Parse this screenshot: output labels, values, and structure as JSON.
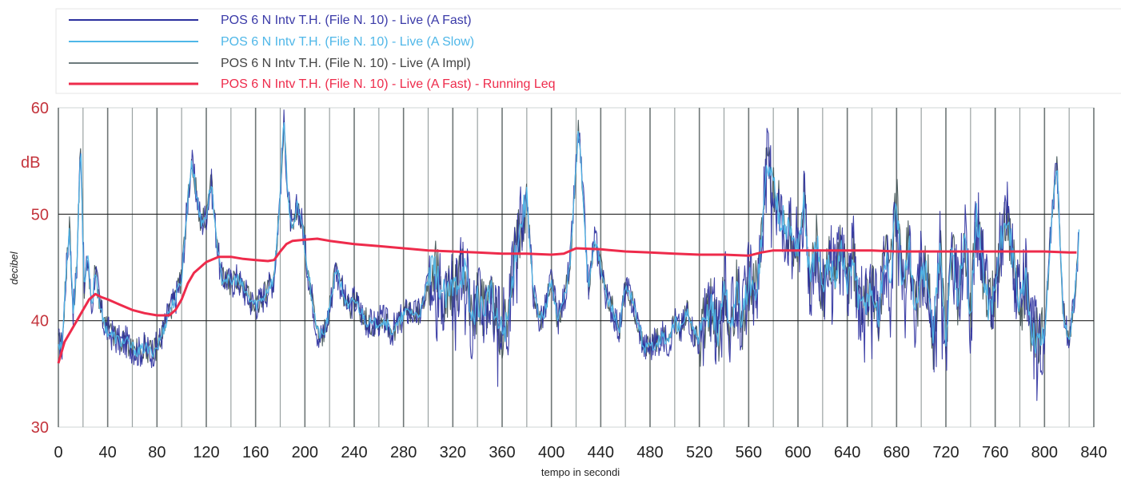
{
  "chart_data": {
    "type": "line",
    "title": "",
    "xlabel": "tempo in secondi",
    "ylabel": "decibel",
    "unit_label": "dB",
    "xlim": [
      0,
      840
    ],
    "ylim": [
      30,
      60
    ],
    "x_ticks": [
      "0",
      "40",
      "80",
      "120",
      "160",
      "200",
      "240",
      "280",
      "320",
      "360",
      "400",
      "440",
      "480",
      "520",
      "560",
      "600",
      "640",
      "680",
      "720",
      "760",
      "800",
      "840"
    ],
    "y_ticks": [
      "30",
      "40",
      "50",
      "60"
    ],
    "grid": "horizontal at 40 and 50 dB; vertical every 20 s",
    "legend_position": "top",
    "series": [
      {
        "name": "POS 6 N Intv T.H.  (File N. 10) - Live (A Fast)",
        "color": "#2b2f9e",
        "x": [
          0,
          3,
          6,
          9,
          12,
          15,
          18,
          21,
          24,
          27,
          30,
          33,
          36,
          40,
          45,
          50,
          55,
          60,
          65,
          70,
          75,
          80,
          85,
          90,
          95,
          100,
          104,
          108,
          112,
          116,
          120,
          124,
          128,
          132,
          136,
          140,
          145,
          150,
          155,
          160,
          165,
          170,
          175,
          180,
          183,
          186,
          190,
          194,
          198,
          202,
          206,
          210,
          215,
          220,
          225,
          230,
          235,
          240,
          245,
          250,
          255,
          260,
          265,
          270,
          275,
          280,
          285,
          290,
          295,
          300,
          305,
          310,
          315,
          320,
          325,
          330,
          335,
          340,
          345,
          350,
          355,
          360,
          365,
          370,
          375,
          380,
          385,
          390,
          395,
          400,
          405,
          410,
          415,
          418,
          422,
          426,
          430,
          435,
          440,
          445,
          450,
          455,
          460,
          465,
          470,
          475,
          480,
          485,
          490,
          495,
          500,
          505,
          510,
          515,
          520,
          525,
          530,
          535,
          540,
          545,
          550,
          555,
          560,
          565,
          570,
          575,
          580,
          585,
          590,
          595,
          600,
          605,
          610,
          615,
          620,
          625,
          630,
          635,
          640,
          645,
          650,
          655,
          660,
          665,
          670,
          675,
          680,
          685,
          690,
          695,
          700,
          705,
          710,
          715,
          720,
          725,
          730,
          735,
          740,
          745,
          750,
          755,
          760,
          765,
          770,
          775,
          780,
          785,
          790,
          795,
          800,
          805,
          810,
          815,
          820,
          825,
          828
        ],
        "y": [
          38,
          37.5,
          44,
          49,
          41,
          45,
          57,
          43,
          46,
          41,
          45,
          42,
          40,
          39,
          38.5,
          38,
          38,
          37.5,
          37,
          37.5,
          37,
          37.5,
          39,
          41,
          42,
          44,
          50,
          55,
          52,
          49,
          50,
          53,
          48,
          44,
          44,
          43.5,
          44,
          43,
          42,
          41.5,
          42,
          43,
          44,
          52,
          59,
          52,
          48,
          51,
          49,
          45,
          42,
          39,
          38.5,
          41,
          45,
          43,
          41,
          42,
          41,
          40,
          39.5,
          40,
          40,
          39,
          39.5,
          40.5,
          41,
          40.5,
          41,
          44,
          45,
          43,
          42,
          43,
          44,
          45,
          40,
          42,
          41,
          43,
          40,
          39,
          40,
          46,
          49,
          52,
          43,
          40,
          41,
          44,
          40,
          42,
          45,
          51,
          58,
          51,
          43,
          48,
          45,
          42,
          41,
          39,
          43,
          42,
          40,
          37.5,
          37.5,
          38,
          38.5,
          38,
          40,
          39,
          41,
          39,
          38,
          40,
          42,
          38,
          44,
          39,
          43,
          40,
          44,
          42,
          47,
          55,
          53,
          50,
          49,
          48,
          47,
          51,
          43,
          48,
          42,
          46,
          44,
          47,
          43,
          46,
          41,
          42,
          43,
          40,
          46,
          44,
          51,
          42,
          48,
          40,
          45,
          44,
          38,
          47,
          37.5,
          47,
          42,
          48,
          40,
          50,
          45,
          41,
          43,
          48,
          50,
          45,
          41,
          44,
          39,
          38,
          38.5,
          48,
          55,
          41,
          38,
          43,
          48
        ],
        "draw": "spiky"
      },
      {
        "name": "POS 6 N Intv T.H.  (File N. 10) - Live (A Slow)",
        "color": "#4fb7e8",
        "x": [
          0,
          3,
          6,
          9,
          12,
          15,
          18,
          21,
          24,
          27,
          30,
          33,
          36,
          40,
          45,
          50,
          55,
          60,
          65,
          70,
          75,
          80,
          85,
          90,
          95,
          100,
          104,
          108,
          112,
          116,
          120,
          124,
          128,
          132,
          136,
          140,
          145,
          150,
          155,
          160,
          165,
          170,
          175,
          180,
          183,
          186,
          190,
          194,
          198,
          202,
          206,
          210,
          215,
          220,
          225,
          230,
          235,
          240,
          245,
          250,
          255,
          260,
          265,
          270,
          275,
          280,
          285,
          290,
          295,
          300,
          305,
          310,
          315,
          320,
          325,
          330,
          335,
          340,
          345,
          350,
          355,
          360,
          365,
          370,
          375,
          380,
          385,
          390,
          395,
          400,
          405,
          410,
          415,
          418,
          422,
          426,
          430,
          435,
          440,
          445,
          450,
          455,
          460,
          465,
          470,
          475,
          480,
          485,
          490,
          495,
          500,
          505,
          510,
          515,
          520,
          525,
          530,
          535,
          540,
          545,
          550,
          555,
          560,
          565,
          570,
          575,
          580,
          585,
          590,
          595,
          600,
          605,
          610,
          615,
          620,
          625,
          630,
          635,
          640,
          645,
          650,
          655,
          660,
          665,
          670,
          675,
          680,
          685,
          690,
          695,
          700,
          705,
          710,
          715,
          720,
          725,
          730,
          735,
          740,
          745,
          750,
          755,
          760,
          765,
          770,
          775,
          780,
          785,
          790,
          795,
          800,
          805,
          810,
          815,
          820,
          825,
          828
        ],
        "y": [
          38,
          37.5,
          44,
          49,
          41,
          45,
          57,
          43,
          46,
          41,
          45,
          42,
          40,
          39,
          38.5,
          38,
          38,
          37.5,
          37,
          37.5,
          37,
          37.5,
          39,
          41,
          42,
          44,
          50,
          55,
          52,
          49,
          50,
          53,
          48,
          44,
          44,
          43.5,
          44,
          43,
          42,
          41.5,
          42,
          43,
          44,
          52,
          59,
          52,
          48,
          51,
          49,
          45,
          42,
          39,
          38.5,
          41,
          45,
          43,
          41,
          42,
          41,
          40,
          39.5,
          40,
          40,
          39,
          39.5,
          40.5,
          41,
          40.5,
          41,
          44,
          45,
          43,
          42,
          43,
          44,
          45,
          40,
          42,
          41,
          43,
          40,
          39,
          40,
          46,
          49,
          52,
          43,
          40,
          41,
          44,
          40,
          42,
          45,
          51,
          58,
          51,
          43,
          48,
          45,
          42,
          41,
          39,
          43,
          42,
          40,
          37.5,
          37.5,
          38,
          38.5,
          38,
          40,
          39,
          41,
          39,
          38,
          40,
          42,
          38,
          44,
          39,
          43,
          40,
          44,
          42,
          47,
          55,
          53,
          50,
          49,
          48,
          47,
          51,
          43,
          48,
          42,
          46,
          44,
          47,
          43,
          46,
          41,
          42,
          43,
          40,
          46,
          44,
          51,
          42,
          48,
          40,
          45,
          44,
          38,
          47,
          37.5,
          47,
          42,
          48,
          40,
          50,
          45,
          41,
          43,
          48,
          50,
          45,
          41,
          44,
          39,
          38,
          38.5,
          48,
          55,
          41,
          38,
          43,
          48
        ],
        "draw": "smooth"
      },
      {
        "name": "POS 6 N Intv T.H.  (File N. 10) - Live (A Impl)",
        "color": "#3c4f50",
        "x": [
          0,
          3,
          6,
          9,
          12,
          15,
          18,
          21,
          24,
          27,
          30,
          33,
          36,
          40,
          45,
          50,
          55,
          60,
          65,
          70,
          75,
          80,
          85,
          90,
          95,
          100,
          104,
          108,
          112,
          116,
          120,
          124,
          128,
          132,
          136,
          140,
          145,
          150,
          155,
          160,
          165,
          170,
          175,
          180,
          183,
          186,
          190,
          194,
          198,
          202,
          206,
          210,
          215,
          220,
          225,
          230,
          235,
          240,
          245,
          250,
          255,
          260,
          265,
          270,
          275,
          280,
          285,
          290,
          295,
          300,
          305,
          310,
          315,
          320,
          325,
          330,
          335,
          340,
          345,
          350,
          355,
          360,
          365,
          370,
          375,
          380,
          385,
          390,
          395,
          400,
          405,
          410,
          415,
          418,
          422,
          426,
          430,
          435,
          440,
          445,
          450,
          455,
          460,
          465,
          470,
          475,
          480,
          485,
          490,
          495,
          500,
          505,
          510,
          515,
          520,
          525,
          530,
          535,
          540,
          545,
          550,
          555,
          560,
          565,
          570,
          575,
          580,
          585,
          590,
          595,
          600,
          605,
          610,
          615,
          620,
          625,
          630,
          635,
          640,
          645,
          650,
          655,
          660,
          665,
          670,
          675,
          680,
          685,
          690,
          695,
          700,
          705,
          710,
          715,
          720,
          725,
          730,
          735,
          740,
          745,
          750,
          755,
          760,
          765,
          770,
          775,
          780,
          785,
          790,
          795,
          800,
          805,
          810,
          815,
          820,
          825,
          828
        ],
        "y": [
          38,
          37.5,
          44,
          49,
          41,
          45,
          57,
          43,
          46,
          41,
          45,
          42,
          40,
          39,
          38.5,
          38,
          38,
          37.5,
          37,
          37.5,
          37,
          37.5,
          39,
          41,
          42,
          44,
          50,
          55,
          52,
          49,
          50,
          53,
          48,
          44,
          44,
          43.5,
          44,
          43,
          42,
          41.5,
          42,
          43,
          44,
          52,
          59,
          52,
          48,
          51,
          49,
          45,
          42,
          39,
          38.5,
          41,
          45,
          43,
          41,
          42,
          41,
          40,
          39.5,
          40,
          40,
          39,
          39.5,
          40.5,
          41,
          40.5,
          41,
          44,
          45,
          43,
          42,
          43,
          44,
          45,
          40,
          42,
          41,
          43,
          40,
          39,
          40,
          46,
          49,
          52,
          43,
          40,
          41,
          44,
          40,
          42,
          45,
          51,
          58,
          51,
          43,
          48,
          45,
          42,
          41,
          39,
          43,
          42,
          40,
          37.5,
          37.5,
          38,
          38.5,
          38,
          40,
          39,
          41,
          39,
          38,
          40,
          42,
          38,
          44,
          39,
          43,
          40,
          44,
          42,
          47,
          55,
          53,
          50,
          49,
          48,
          47,
          51,
          43,
          48,
          42,
          46,
          44,
          47,
          43,
          46,
          41,
          42,
          43,
          40,
          46,
          44,
          51,
          42,
          48,
          40,
          45,
          44,
          38,
          47,
          37.5,
          47,
          42,
          48,
          40,
          50,
          45,
          41,
          43,
          48,
          50,
          45,
          41,
          44,
          39,
          38,
          38.5,
          48,
          55,
          41,
          38,
          43,
          48
        ],
        "draw": "spiky2"
      },
      {
        "name": "POS 6 N Intv T.H.  (File N. 10) - Live (A Fast) - Running Leq",
        "color": "#ee2b4b",
        "x": [
          0,
          5,
          10,
          15,
          20,
          25,
          30,
          35,
          40,
          50,
          60,
          70,
          80,
          90,
          95,
          100,
          105,
          110,
          115,
          120,
          130,
          140,
          150,
          160,
          170,
          175,
          180,
          185,
          190,
          200,
          210,
          220,
          240,
          260,
          280,
          300,
          320,
          340,
          360,
          380,
          400,
          410,
          420,
          440,
          460,
          480,
          500,
          520,
          540,
          560,
          570,
          580,
          600,
          620,
          640,
          660,
          680,
          700,
          720,
          740,
          760,
          780,
          800,
          820,
          826
        ],
        "y": [
          36,
          38,
          39,
          40,
          41,
          42,
          42.5,
          42.2,
          42,
          41.5,
          41,
          40.7,
          40.5,
          40.5,
          41,
          42,
          43.5,
          44.5,
          45,
          45.5,
          46,
          46,
          45.8,
          45.7,
          45.6,
          45.7,
          46.5,
          47.2,
          47.5,
          47.6,
          47.7,
          47.5,
          47.2,
          47,
          46.8,
          46.6,
          46.5,
          46.4,
          46.3,
          46.3,
          46.2,
          46.3,
          46.8,
          46.7,
          46.5,
          46.4,
          46.3,
          46.2,
          46.2,
          46.1,
          46.4,
          46.6,
          46.6,
          46.6,
          46.6,
          46.6,
          46.5,
          46.5,
          46.5,
          46.5,
          46.5,
          46.5,
          46.5,
          46.4,
          46.4
        ],
        "draw": "line"
      }
    ]
  }
}
